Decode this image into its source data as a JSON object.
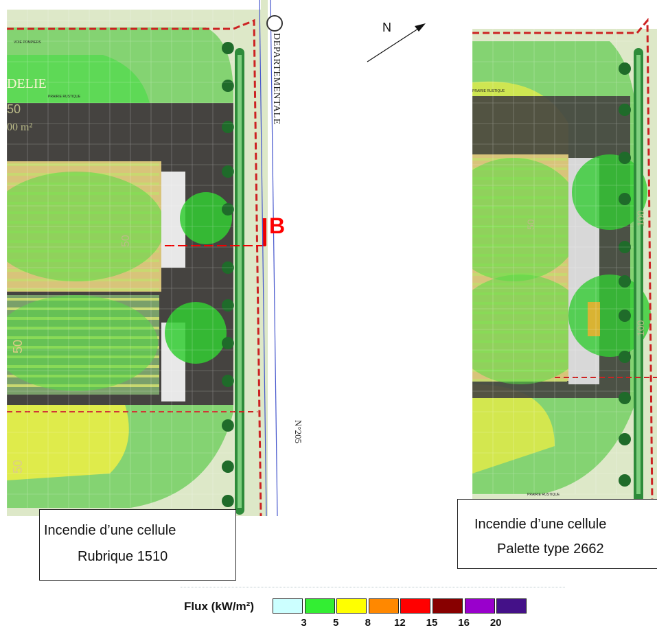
{
  "map": {
    "road_label": "DEPARTEMENTALE",
    "road_number": "N°205",
    "north_label": "N",
    "section_marker": "B",
    "left_plan_texts": {
      "fire_access": "VOIE POMPIERS",
      "building_name": "DELIE",
      "meadow": "PRAIRIE RUSTIQUE",
      "dimension_50_top": "50",
      "area_fragment": "00 m²",
      "dimension_50_mid": "50",
      "dimension_50_bottom": "50",
      "dimension_50_inner": "50"
    },
    "right_plan_texts": {
      "meadow_top": "PRAIRIE RUSTIQUE",
      "meadow_bottom": "PRAIRIE RUSTIQUE",
      "dimension_100_a": "100",
      "dimension_100_b": "100",
      "dimension_50": "50"
    },
    "colors": {
      "ground": "#dde8c8",
      "building": "#454340",
      "flux_green": "#33dd33",
      "flux_yellow": "#eeee33",
      "boundary": "#cc2222",
      "road_line": "#4455cc",
      "hedge": "#2e8b3a"
    }
  },
  "captions": {
    "left": {
      "line1": "Incendie d’une cellule",
      "line2": "Rubrique 1510"
    },
    "right": {
      "line1": "Incendie d’une cellule",
      "line2": "Palette type 2662"
    }
  },
  "legend": {
    "title": "Flux (kW/m²)",
    "swatches": [
      {
        "color": "#ccffff"
      },
      {
        "color": "#33ee33"
      },
      {
        "color": "#ffff00"
      },
      {
        "color": "#ff8800"
      },
      {
        "color": "#ff0000"
      },
      {
        "color": "#880000"
      },
      {
        "color": "#9900cc"
      },
      {
        "color": "#441188"
      }
    ],
    "ticks": [
      "3",
      "5",
      "8",
      "12",
      "15",
      "16",
      "20"
    ]
  }
}
